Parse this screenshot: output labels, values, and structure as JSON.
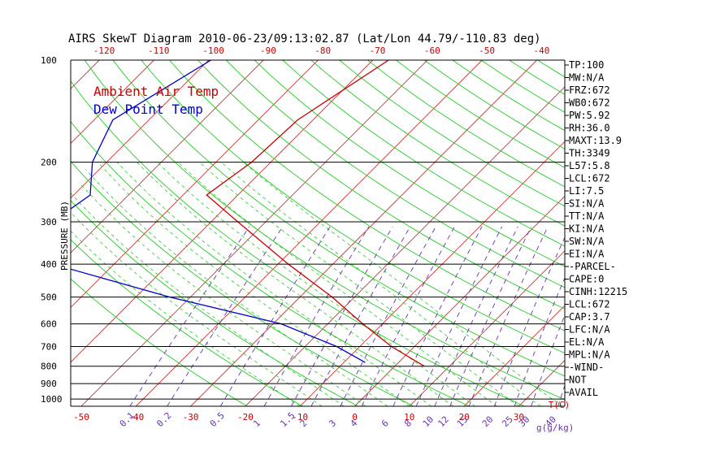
{
  "chart_data": {
    "type": "line",
    "title": "AIRS SkewT Diagram 2010-06-23/09:13:02.87 (Lat/Lon 44.79/-110.83 deg)",
    "ylabel": "PRESSURE (MB)",
    "y_scale": "log",
    "ylim": [
      1050,
      100
    ],
    "pressure_ticks": [
      {
        "p": 100,
        "label": "100"
      },
      {
        "p": 200,
        "label": "200"
      },
      {
        "p": 300,
        "label": "300"
      },
      {
        "p": 400,
        "label": "400"
      },
      {
        "p": 500,
        "label": "500"
      },
      {
        "p": 600,
        "label": "600"
      },
      {
        "p": 700,
        "label": "700"
      },
      {
        "p": 800,
        "label": "800"
      },
      {
        "p": 900,
        "label": "900"
      },
      {
        "p": 1000,
        "label": "1000"
      }
    ],
    "top_temp_ticks": [
      "-120",
      "-110",
      "-100",
      "-90",
      "-80",
      "-70",
      "-60",
      "-50",
      "-40"
    ],
    "bottom_temp_ticks": [
      "-50",
      "-40",
      "-30",
      "-20",
      "-10",
      "0",
      "10",
      "20",
      "30"
    ],
    "bottom_axis_unit": "T(C)",
    "mixing_ratio_labels": [
      "0.1",
      "0.2",
      "0.5",
      "1",
      "1.5",
      "2",
      "3",
      "4",
      "6",
      "8",
      "10",
      "12",
      "15",
      "20",
      "25",
      "30",
      "40"
    ],
    "mixing_ratio_unit": "g(g/kg)",
    "series": [
      {
        "name": "Ambient Air Temp",
        "color": "#cc0000",
        "points": [
          {
            "p": 100,
            "t": -57.1
          },
          {
            "p": 150,
            "t": -62.8
          },
          {
            "p": 200,
            "t": -63.5
          },
          {
            "p": 250,
            "t": -65.7
          },
          {
            "p": 300,
            "t": -55.1
          },
          {
            "p": 400,
            "t": -38.1
          },
          {
            "p": 500,
            "t": -24.1
          },
          {
            "p": 600,
            "t": -13.6
          },
          {
            "p": 700,
            "t": -4.2
          },
          {
            "p": 800,
            "t": 5.4
          }
        ]
      },
      {
        "name": "Dew Point Temp",
        "color": "#0000cc",
        "points": [
          {
            "p": 100,
            "t": -89.6
          },
          {
            "p": 150,
            "t": -96.6
          },
          {
            "p": 200,
            "t": -92.6
          },
          {
            "p": 250,
            "t": -87.0
          },
          {
            "p": 300,
            "t": -89.0
          },
          {
            "p": 400,
            "t": -81.1
          },
          {
            "p": 500,
            "t": -53.8
          },
          {
            "p": 600,
            "t": -28.5
          },
          {
            "p": 700,
            "t": -14.2
          },
          {
            "p": 780,
            "t": -6.1
          }
        ]
      }
    ],
    "grid": true,
    "legend": "top-left"
  },
  "indices": [
    "TP:100",
    "MW:N/A",
    "FRZ:672",
    "WB0:672",
    "PW:5.92",
    "RH:36.0",
    "MAXT:13.9",
    "TH:3349",
    "L57:5.8",
    "LCL:672",
    "LI:7.5",
    "SI:N/A",
    "TT:N/A",
    "KI:N/A",
    "SW:N/A",
    "EI:N/A",
    "-PARCEL-",
    "CAPE:0",
    "CINH:12215",
    "LCL:672",
    "CAP:3.7",
    "LFC:N/A",
    "EL:N/A",
    "MPL:N/A",
    "-WIND-",
    "NOT",
    "AVAIL"
  ]
}
